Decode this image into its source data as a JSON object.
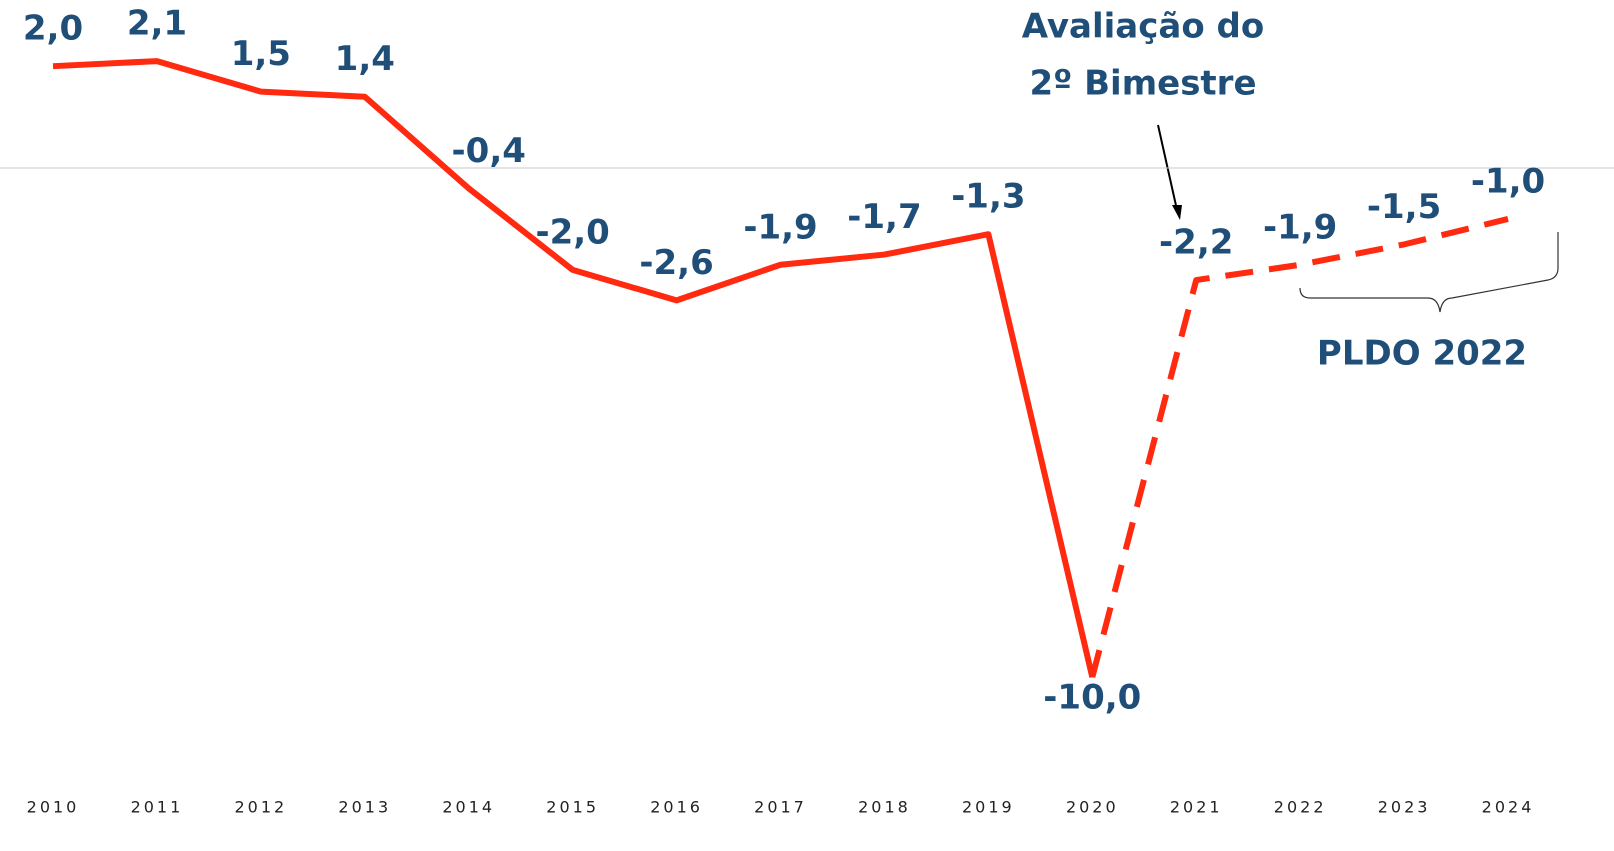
{
  "chart_data": {
    "type": "line",
    "categories": [
      "2010",
      "2011",
      "2012",
      "2013",
      "2014",
      "2015",
      "2016",
      "2017",
      "2018",
      "2019",
      "2020",
      "2021",
      "2022",
      "2023",
      "2024"
    ],
    "values": [
      2.0,
      2.1,
      1.5,
      1.4,
      -0.4,
      -2.0,
      -2.6,
      -1.9,
      -1.7,
      -1.3,
      -10.0,
      -2.2,
      -1.9,
      -1.5,
      -1.0
    ],
    "value_labels": [
      "2,0",
      "2,1",
      "1,5",
      "1,4",
      "-0,4",
      "-2,0",
      "-2,6",
      "-1,9",
      "-1,7",
      "-1,3",
      "-10,0",
      "-2,2",
      "-1,9",
      "-1,5",
      "-1,0"
    ],
    "color": "#ff2a0f",
    "dashed_from_index": 10,
    "reference_line": 0,
    "ylim": [
      -12,
      3.3
    ],
    "annotations": [
      {
        "text": [
          "Avaliação do",
          "2º Bimestre"
        ]
      },
      {
        "text": "PLDO 2022"
      }
    ]
  }
}
